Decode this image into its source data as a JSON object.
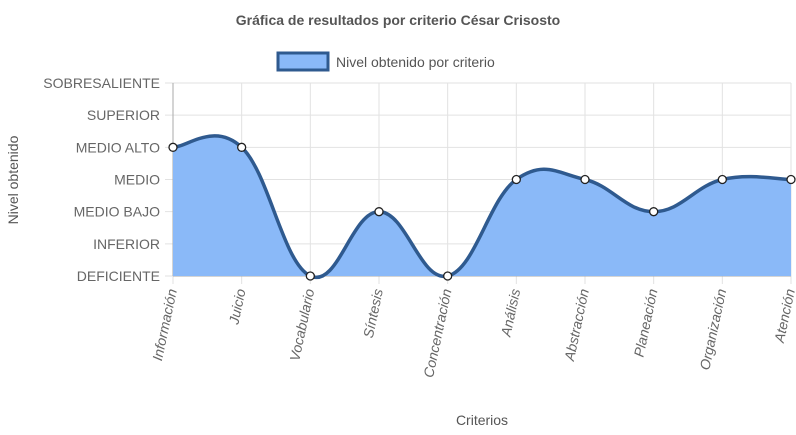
{
  "chart_data": {
    "type": "area",
    "title": "Gráfica de resultados por criterio César Crisosto",
    "xlabel": "Criterios",
    "ylabel": "Nivel obtenido",
    "categories": [
      "Información",
      "Juicio",
      "Vocabulario",
      "Síntesis",
      "Concentración",
      "Análisis",
      "Abstracción",
      "Planeación",
      "Organización",
      "Atención"
    ],
    "y_levels": [
      "DEFICIENTE",
      "INFERIOR",
      "MEDIO BAJO",
      "MEDIO",
      "MEDIO ALTO",
      "SUPERIOR",
      "SOBRESALIENTE"
    ],
    "ylim": [
      0,
      6
    ],
    "series": [
      {
        "name": "Nivel obtenido por criterio",
        "values": [
          4,
          4,
          0,
          2,
          0,
          3,
          3,
          2,
          3,
          3
        ],
        "value_labels": [
          "MEDIO ALTO",
          "MEDIO ALTO",
          "DEFICIENTE",
          "MEDIO BAJO",
          "DEFICIENTE",
          "MEDIO",
          "MEDIO",
          "MEDIO BAJO",
          "MEDIO",
          "MEDIO"
        ]
      }
    ],
    "grid": true,
    "legend_position": "top",
    "colors": {
      "fill": "#8ab9f8",
      "line": "#2f5a8f",
      "point_fill": "#ffffff",
      "point_stroke": "#222222",
      "grid": "#e2e2e2",
      "axis": "#aaaaaa"
    }
  }
}
